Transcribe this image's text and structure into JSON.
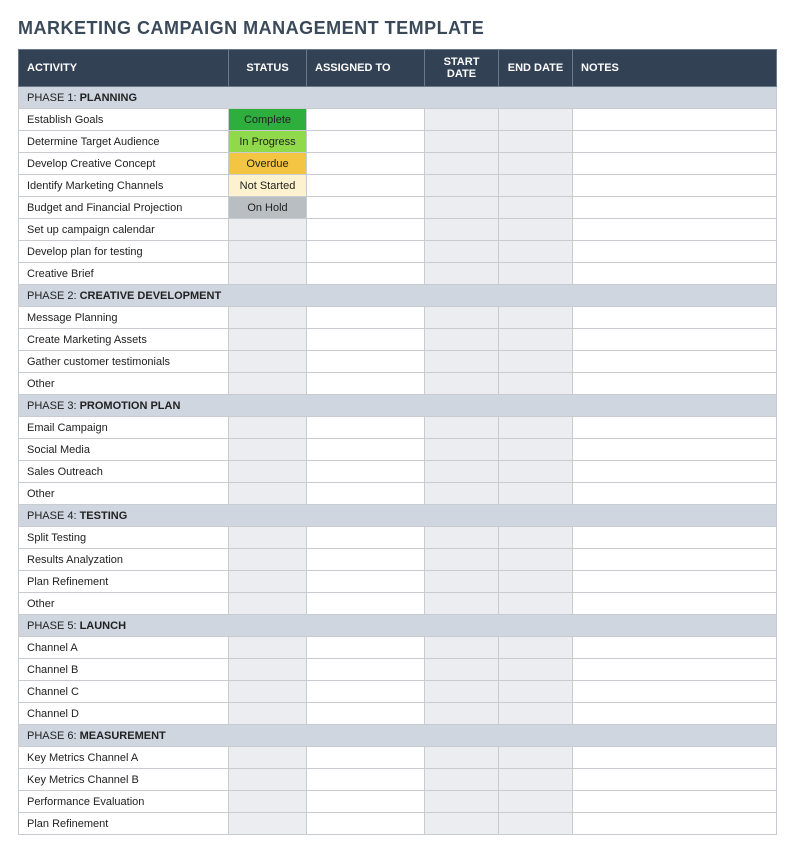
{
  "title": "MARKETING CAMPAIGN MANAGEMENT TEMPLATE",
  "columns": [
    "ACTIVITY",
    "STATUS",
    "ASSIGNED TO",
    "START DATE",
    "END DATE",
    "NOTES"
  ],
  "status_colors": {
    "Complete": "#2eaf3d",
    "In Progress": "#8fd94a",
    "Overdue": "#f4c542",
    "Not Started": "#fdf2d0",
    "On Hold": "#b9bec3"
  },
  "header_bg": "#334155",
  "phase_bg": "#cfd6e0",
  "shade_bg": "#ebedf0",
  "phases": [
    {
      "prefix": "PHASE 1: ",
      "label": "PLANNING",
      "rows": [
        {
          "activity": "Establish Goals",
          "status": "Complete"
        },
        {
          "activity": "Determine Target Audience",
          "status": "In Progress"
        },
        {
          "activity": "Develop Creative Concept",
          "status": "Overdue"
        },
        {
          "activity": "Identify Marketing Channels",
          "status": "Not Started"
        },
        {
          "activity": "Budget and Financial Projection",
          "status": "On Hold"
        },
        {
          "activity": "Set up campaign calendar",
          "status": ""
        },
        {
          "activity": "Develop plan for testing",
          "status": ""
        },
        {
          "activity": "Creative Brief",
          "status": ""
        }
      ]
    },
    {
      "prefix": "PHASE 2: ",
      "label": "CREATIVE DEVELOPMENT",
      "rows": [
        {
          "activity": "Message Planning",
          "status": ""
        },
        {
          "activity": "Create Marketing Assets",
          "status": ""
        },
        {
          "activity": "Gather customer testimonials",
          "status": ""
        },
        {
          "activity": "Other",
          "status": ""
        }
      ]
    },
    {
      "prefix": "PHASE 3: ",
      "label": "PROMOTION PLAN",
      "rows": [
        {
          "activity": "Email Campaign",
          "status": ""
        },
        {
          "activity": "Social Media",
          "status": ""
        },
        {
          "activity": "Sales Outreach",
          "status": ""
        },
        {
          "activity": "Other",
          "status": ""
        }
      ]
    },
    {
      "prefix": "PHASE 4: ",
      "label": "TESTING",
      "rows": [
        {
          "activity": "Split Testing",
          "status": ""
        },
        {
          "activity": "Results Analyzation",
          "status": ""
        },
        {
          "activity": "Plan Refinement",
          "status": ""
        },
        {
          "activity": "Other",
          "status": ""
        }
      ]
    },
    {
      "prefix": "PHASE 5: ",
      "label": "LAUNCH",
      "rows": [
        {
          "activity": "Channel A",
          "status": ""
        },
        {
          "activity": "Channel B",
          "status": ""
        },
        {
          "activity": "Channel C",
          "status": ""
        },
        {
          "activity": "Channel D",
          "status": ""
        }
      ]
    },
    {
      "prefix": "PHASE 6: ",
      "label": "MEASUREMENT",
      "rows": [
        {
          "activity": "Key Metrics Channel A",
          "status": ""
        },
        {
          "activity": "Key Metrics Channel B",
          "status": ""
        },
        {
          "activity": "Performance Evaluation",
          "status": ""
        },
        {
          "activity": "Plan Refinement",
          "status": ""
        }
      ]
    }
  ]
}
